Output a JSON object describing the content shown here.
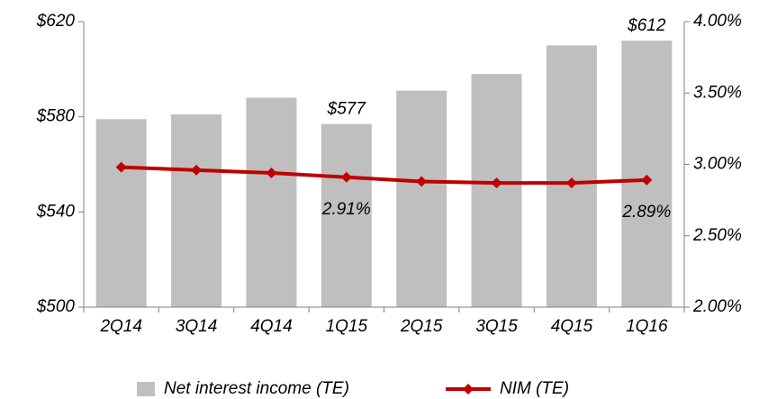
{
  "chart_data": {
    "type": "bar+line",
    "categories": [
      "2Q14",
      "3Q14",
      "4Q14",
      "1Q15",
      "2Q15",
      "3Q15",
      "4Q15",
      "1Q16"
    ],
    "series": [
      {
        "name": "Net interest income (TE)",
        "type": "bar",
        "color": "#bfbfbf",
        "axis": "y",
        "values": [
          579,
          581,
          588,
          577,
          591,
          598,
          610,
          612
        ],
        "value_labels": [
          null,
          null,
          null,
          "$577",
          null,
          null,
          null,
          "$612"
        ]
      },
      {
        "name": "NIM (TE)",
        "type": "line",
        "color": "#c00000",
        "axis": "y2",
        "values": [
          2.98,
          2.96,
          2.94,
          2.91,
          2.88,
          2.87,
          2.87,
          2.89
        ],
        "value_labels": [
          null,
          null,
          null,
          "2.91%",
          null,
          null,
          null,
          "2.89%"
        ]
      }
    ],
    "ylim": [
      500,
      620
    ],
    "yticks": [
      {
        "value": 500,
        "label": "$500"
      },
      {
        "value": 540,
        "label": "$540"
      },
      {
        "value": 580,
        "label": "$580"
      },
      {
        "value": 620,
        "label": "$620"
      }
    ],
    "y2lim": [
      2,
      4
    ],
    "y2ticks": [
      {
        "value": 2,
        "label": "2.00%"
      },
      {
        "value": 2.5,
        "label": "2.50%"
      },
      {
        "value": 3,
        "label": "3.00%"
      },
      {
        "value": 3.5,
        "label": "3.50%"
      },
      {
        "value": 4,
        "label": "4.00%"
      }
    ],
    "grid": false,
    "legend": "bottom"
  }
}
